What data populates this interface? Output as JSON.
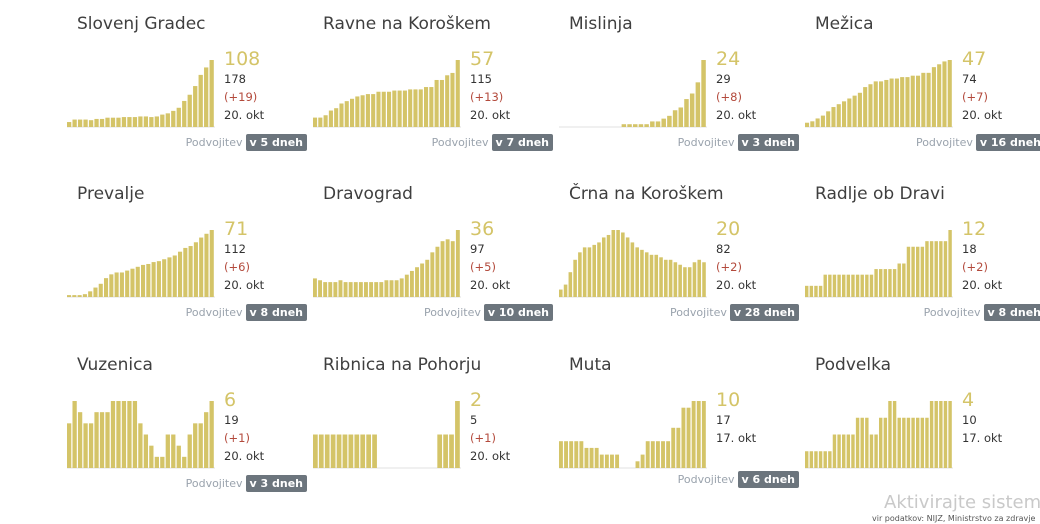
{
  "colors": {
    "bar": "#d4c468",
    "accent": "#d4c468",
    "delta": "#b34a3c",
    "badge": "#6c757d"
  },
  "doubling_label": "Podvojitev",
  "watermark": {
    "title": "Aktivirajte sistem W",
    "subtitle": "vir podatkov: NIJZ, Ministrstvo za zdravje"
  },
  "chart_data": [
    {
      "type": "bar",
      "title": "Slovenj Gradec",
      "value": "108",
      "total": "178",
      "delta": "(+19)",
      "date": "20. okt",
      "doubling": "v 5 dneh",
      "values": [
        8,
        12,
        12,
        12,
        11,
        13,
        13,
        15,
        15,
        15,
        16,
        16,
        16,
        17,
        17,
        16,
        17,
        20,
        22,
        26,
        31,
        42,
        52,
        66,
        84,
        96,
        108
      ]
    },
    {
      "type": "bar",
      "title": "Ravne na Koroškem",
      "value": "57",
      "total": "115",
      "delta": "(+13)",
      "date": "20. okt",
      "doubling": "v 7 dneh",
      "values": [
        8,
        8,
        10,
        14,
        16,
        20,
        22,
        24,
        26,
        27,
        28,
        28,
        30,
        30,
        30,
        31,
        31,
        31,
        32,
        32,
        32,
        34,
        34,
        40,
        40,
        44,
        46,
        57
      ]
    },
    {
      "type": "bar",
      "title": "Mislinja",
      "value": "24",
      "total": "29",
      "delta": "(+8)",
      "date": "20. okt",
      "doubling": "v 3 dneh",
      "values": [
        0,
        0,
        0,
        0,
        0,
        0,
        0,
        0,
        0,
        0,
        0,
        1,
        1,
        1,
        1,
        1,
        2,
        2,
        3,
        4,
        6,
        7,
        10,
        12,
        16,
        24
      ]
    },
    {
      "type": "bar",
      "title": "Mežica",
      "value": "47",
      "total": "74",
      "delta": "(+7)",
      "date": "20. okt",
      "doubling": "v 16 dneh",
      "values": [
        3,
        4,
        6,
        8,
        11,
        14,
        16,
        18,
        20,
        22,
        24,
        28,
        30,
        32,
        32,
        33,
        34,
        34,
        35,
        35,
        36,
        36,
        38,
        38,
        42,
        44,
        46,
        47
      ]
    },
    {
      "type": "bar",
      "title": "Prevalje",
      "value": "71",
      "total": "112",
      "delta": "(+6)",
      "date": "20. okt",
      "doubling": "v 8 dneh",
      "values": [
        2,
        2,
        2,
        3,
        6,
        10,
        14,
        20,
        24,
        26,
        26,
        28,
        30,
        32,
        34,
        35,
        37,
        38,
        40,
        42,
        44,
        48,
        52,
        54,
        58,
        63,
        67,
        71
      ]
    },
    {
      "type": "bar",
      "title": "Dravograd",
      "value": "36",
      "total": "97",
      "delta": "(+5)",
      "date": "20. okt",
      "doubling": "v 10 dneh",
      "values": [
        10,
        9,
        8,
        8,
        8,
        9,
        8,
        8,
        8,
        8,
        8,
        8,
        8,
        8,
        9,
        9,
        9,
        10,
        12,
        14,
        16,
        18,
        20,
        24,
        27,
        30,
        31,
        30,
        36
      ]
    },
    {
      "type": "bar",
      "title": "Črna na Koroškem",
      "value": "20",
      "total": "82",
      "delta": "(+2)",
      "date": "20. okt",
      "doubling": "v 28 dneh",
      "values": [
        3,
        5,
        10,
        15,
        18,
        20,
        20,
        21,
        22,
        24,
        25,
        27,
        27,
        26,
        24,
        22,
        20,
        19,
        18,
        17,
        17,
        16,
        15,
        15,
        14,
        13,
        12,
        12,
        14,
        15,
        14
      ]
    },
    {
      "type": "bar",
      "title": "Radlje ob Dravi",
      "value": "12",
      "total": "18",
      "delta": "(+2)",
      "date": "20. okt",
      "doubling": "v 8 dneh",
      "values": [
        2,
        2,
        2,
        2,
        4,
        4,
        4,
        4,
        4,
        4,
        4,
        4,
        4,
        4,
        4,
        5,
        5,
        5,
        5,
        5,
        6,
        6,
        9,
        9,
        9,
        9,
        10,
        10,
        10,
        10,
        10,
        12
      ]
    },
    {
      "type": "bar",
      "title": "Vuzenica",
      "value": "6",
      "total": "19",
      "delta": "(+1)",
      "date": "20. okt",
      "doubling": "v 3 dneh",
      "values": [
        4,
        6,
        5,
        4,
        4,
        5,
        5,
        5,
        6,
        6,
        6,
        6,
        6,
        4,
        3,
        2,
        1,
        1,
        3,
        3,
        2,
        1,
        3,
        4,
        4,
        5,
        6
      ]
    },
    {
      "type": "bar",
      "title": "Ribnica na Pohorju",
      "value": "2",
      "total": "5",
      "delta": "(+1)",
      "date": "20. okt",
      "doubling": "",
      "values": [
        1,
        1,
        1,
        1,
        1,
        1,
        1,
        1,
        1,
        1,
        1,
        0,
        0,
        0,
        0,
        0,
        0,
        0,
        0,
        0,
        0,
        1,
        1,
        1,
        2
      ]
    },
    {
      "type": "bar",
      "title": "Muta",
      "value": "10",
      "total": "17",
      "delta": "",
      "date": "17. okt",
      "doubling": "v 6 dneh",
      "values": [
        4,
        4,
        4,
        4,
        4,
        3,
        3,
        3,
        2,
        2,
        2,
        2,
        0,
        0,
        0,
        1,
        2,
        4,
        4,
        4,
        4,
        4,
        6,
        6,
        9,
        9,
        10,
        10,
        10
      ]
    },
    {
      "type": "bar",
      "title": "Podvelka",
      "value": "4",
      "total": "10",
      "delta": "",
      "date": "17. okt",
      "doubling": "",
      "values": [
        1,
        1,
        1,
        1,
        1,
        1,
        2,
        2,
        2,
        2,
        2,
        3,
        3,
        3,
        2,
        2,
        3,
        3,
        4,
        4,
        3,
        3,
        3,
        3,
        3,
        3,
        3,
        4,
        4,
        4,
        4,
        4
      ]
    }
  ]
}
